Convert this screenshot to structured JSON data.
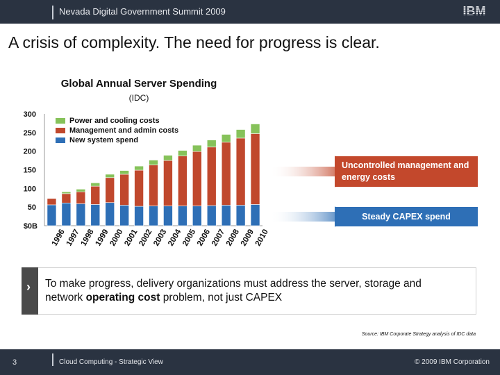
{
  "header": {
    "title": "Nevada Digital Government Summit 2009",
    "logo": "IBM"
  },
  "headline": "A crisis of complexity.  The need for progress is clear.",
  "chart_data": {
    "type": "bar",
    "stacked": true,
    "title": "Global Annual Server Spending",
    "subtitle": "(IDC)",
    "categories": [
      "1996",
      "1997",
      "1998",
      "1999",
      "2000",
      "2001",
      "2002",
      "2003",
      "2004",
      "2005",
      "2006",
      "2007",
      "2008",
      "2009",
      "2010"
    ],
    "series": [
      {
        "name": "New system spend",
        "color": "#2e6fb6",
        "values": [
          56,
          61,
          59,
          57,
          62,
          55,
          52,
          53,
          53,
          53,
          53,
          54,
          55,
          55,
          57
        ]
      },
      {
        "name": "Management and admin costs",
        "color": "#c0482d",
        "values": [
          17,
          25,
          32,
          49,
          67,
          83,
          97,
          110,
          122,
          134,
          146,
          157,
          169,
          180,
          190
        ]
      },
      {
        "name": "Power and cooling costs",
        "color": "#86c25a",
        "values": [
          0,
          5,
          7,
          9,
          9,
          10,
          11,
          13,
          14,
          15,
          17,
          19,
          21,
          23,
          26
        ]
      }
    ],
    "yticks": [
      "$0B",
      "50",
      "100",
      "150",
      "200",
      "250",
      "300"
    ],
    "ylim": [
      0,
      300
    ],
    "legend_order": [
      "Power and cooling costs",
      "Management and admin costs",
      "New system spend"
    ]
  },
  "callouts": {
    "upper": "Uncontrolled management and energy costs",
    "lower": "Steady CAPEX spend"
  },
  "quote": {
    "pre": "To make progress, delivery organizations must address the server, storage and network ",
    "bold": "operating cost",
    "post": " problem, not just CAPEX"
  },
  "source": "Source: IBM Corporate Strategy analysis of IDC data",
  "footer": {
    "page": "3",
    "left": "Cloud Computing - Strategic View",
    "right": "© 2009 IBM Corporation"
  },
  "colors": {
    "band": "#2a3341",
    "red_arrow": "#c3482c",
    "blue_arrow": "#2e6fb6"
  }
}
